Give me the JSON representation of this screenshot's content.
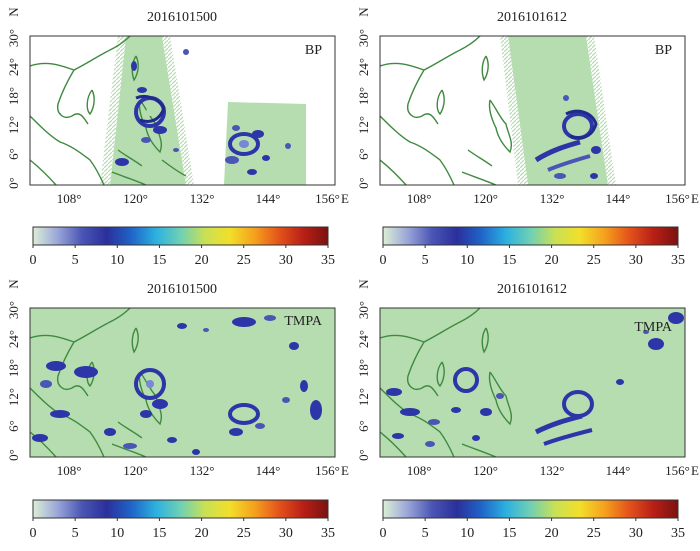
{
  "panels": [
    {
      "title": "2016101500",
      "label": "BP"
    },
    {
      "title": "2016101612",
      "label": "BP"
    },
    {
      "title": "2016101500",
      "label": "TMPA"
    },
    {
      "title": "2016101612",
      "label": "TMPA"
    }
  ],
  "axes": {
    "lon_ticks": [
      "108°",
      "120°",
      "132°",
      "144°",
      "156°"
    ],
    "lat_ticks": [
      "30°",
      "24°",
      "18°",
      "12°",
      "6°",
      "0°"
    ],
    "east_label": "E",
    "north_label": "N"
  },
  "colorbar": {
    "ticks": [
      "0",
      "5",
      "10",
      "15",
      "20",
      "25",
      "30",
      "35"
    ],
    "stops": [
      "#dcefd6",
      "#9aa6d8",
      "#4a55b4",
      "#2b2f9c",
      "#1f64c8",
      "#2cb0e0",
      "#6fd0b4",
      "#c9e055",
      "#f2df2a",
      "#f5a11e",
      "#e4541b",
      "#b81f16",
      "#7a1210"
    ]
  },
  "colors": {
    "land_outline": "#3f8a3f",
    "valid_area": "#b5ddb0",
    "rain": "#2d35a8",
    "rain_light": "#7a86d6"
  }
}
